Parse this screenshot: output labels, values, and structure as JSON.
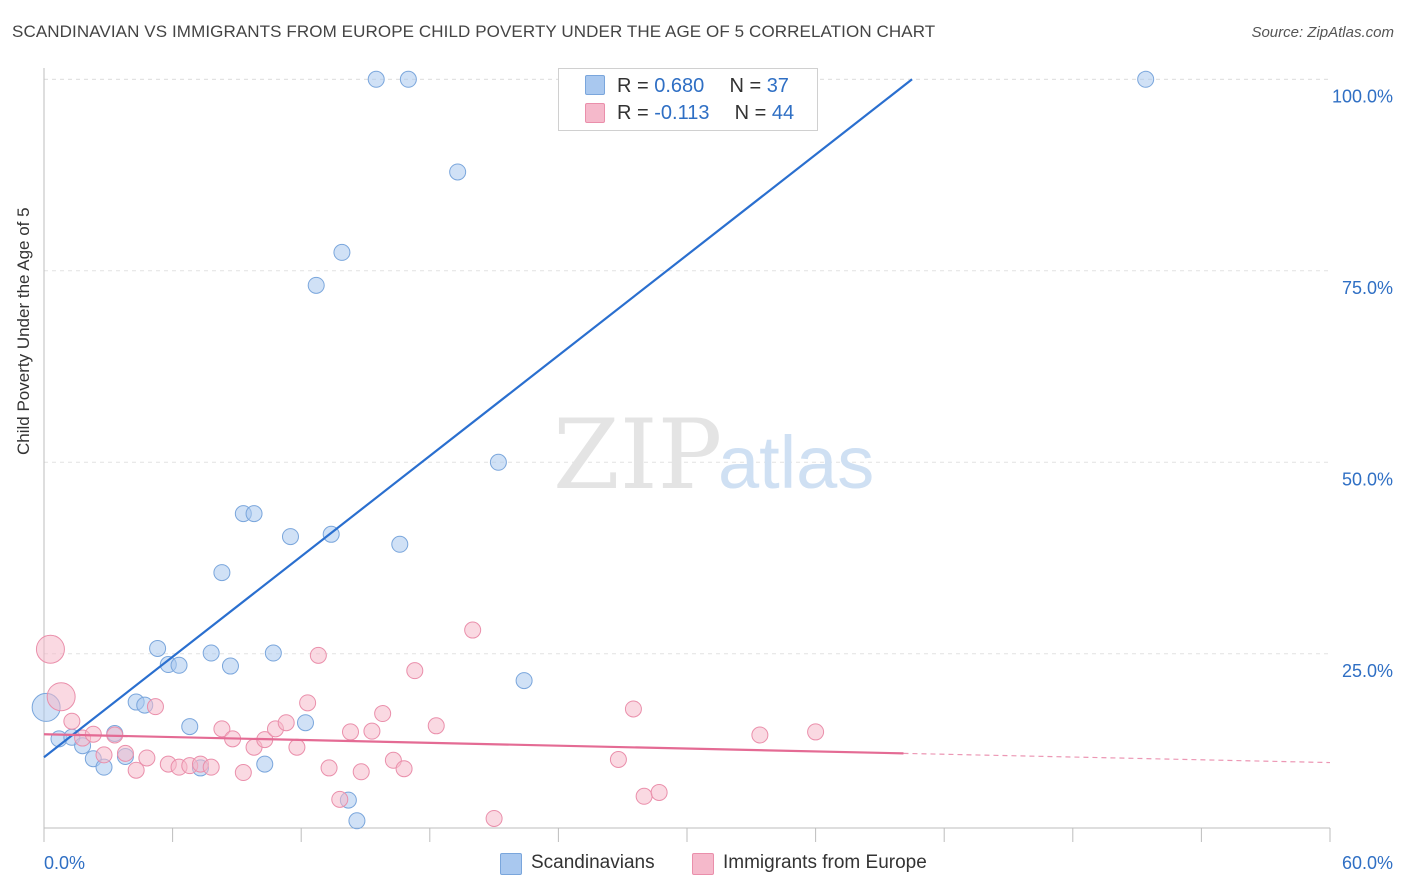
{
  "header": {
    "title": "SCANDINAVIAN VS IMMIGRANTS FROM EUROPE CHILD POVERTY UNDER THE AGE OF 5 CORRELATION CHART",
    "source": "Source: ZipAtlas.com"
  },
  "watermark": {
    "zip": "ZIP",
    "atlas": "atlas"
  },
  "legend_top": {
    "r_label": "R =",
    "n_label": "N =",
    "series": [
      {
        "r": "0.680",
        "n": "37"
      },
      {
        "r": "-0.113",
        "n": "44"
      }
    ]
  },
  "colors": {
    "blue_fill": "#a9c8ef",
    "blue_stroke": "#7aa6dc",
    "blue_line": "#2a6fcf",
    "pink_fill": "#f5b9cb",
    "pink_stroke": "#ea8fab",
    "pink_line": "#e46b94",
    "tick_label": "#2f6fc4",
    "grid": "#e2e2e2"
  },
  "chart_data": {
    "type": "scatter",
    "title": "SCANDINAVIAN VS IMMIGRANTS FROM EUROPE CHILD POVERTY UNDER THE AGE OF 5 CORRELATION CHART",
    "xlabel": "",
    "ylabel": "Child Poverty Under the Age of 5",
    "xlim": [
      0,
      60
    ],
    "ylim": [
      0,
      102
    ],
    "x_tick_labels": [
      "0.0%",
      "60.0%"
    ],
    "y_ticks": [
      25,
      50,
      75,
      100
    ],
    "y_tick_labels": [
      "25.0%",
      "50.0%",
      "75.0%",
      "100.0%"
    ],
    "grid": true,
    "legend_position": "bottom",
    "series": [
      {
        "name": "Scandinavians",
        "color": "#a9c8ef",
        "trend": {
          "x": [
            0,
            40.5
          ],
          "y": [
            11.5,
            100
          ]
        },
        "points": [
          {
            "x": 0.1,
            "y": 18.0,
            "big": true
          },
          {
            "x": 0.7,
            "y": 13.9
          },
          {
            "x": 1.3,
            "y": 14.1
          },
          {
            "x": 1.8,
            "y": 13.0
          },
          {
            "x": 2.3,
            "y": 11.3
          },
          {
            "x": 2.8,
            "y": 10.2
          },
          {
            "x": 3.3,
            "y": 14.6
          },
          {
            "x": 3.8,
            "y": 11.6
          },
          {
            "x": 4.3,
            "y": 18.7
          },
          {
            "x": 4.7,
            "y": 18.3
          },
          {
            "x": 5.3,
            "y": 25.7
          },
          {
            "x": 5.8,
            "y": 23.6
          },
          {
            "x": 6.3,
            "y": 23.5
          },
          {
            "x": 6.8,
            "y": 15.5
          },
          {
            "x": 7.3,
            "y": 10.1
          },
          {
            "x": 7.8,
            "y": 25.1
          },
          {
            "x": 8.3,
            "y": 35.6
          },
          {
            "x": 8.7,
            "y": 23.4
          },
          {
            "x": 9.3,
            "y": 43.3
          },
          {
            "x": 9.8,
            "y": 43.3
          },
          {
            "x": 10.3,
            "y": 10.6
          },
          {
            "x": 10.7,
            "y": 25.1
          },
          {
            "x": 11.5,
            "y": 40.3
          },
          {
            "x": 12.2,
            "y": 16.0
          },
          {
            "x": 12.7,
            "y": 73.1
          },
          {
            "x": 13.4,
            "y": 40.6
          },
          {
            "x": 13.9,
            "y": 77.4
          },
          {
            "x": 14.2,
            "y": 5.9
          },
          {
            "x": 14.6,
            "y": 3.2
          },
          {
            "x": 15.5,
            "y": 100.0
          },
          {
            "x": 16.6,
            "y": 39.3
          },
          {
            "x": 17.0,
            "y": 100.0
          },
          {
            "x": 19.3,
            "y": 87.9
          },
          {
            "x": 21.2,
            "y": 50.0
          },
          {
            "x": 22.4,
            "y": 21.5
          },
          {
            "x": 26.2,
            "y": 100.0
          },
          {
            "x": 51.4,
            "y": 100.0
          }
        ]
      },
      {
        "name": "Immigrants from Europe",
        "color": "#f5b9cb",
        "trend": {
          "x": [
            0,
            40.1
          ],
          "y": [
            14.5,
            12.0
          ]
        },
        "trend_ext": {
          "x": [
            40.1,
            60
          ],
          "y": [
            12.0,
            10.8
          ]
        },
        "points": [
          {
            "x": 0.3,
            "y": 25.6,
            "big": true
          },
          {
            "x": 0.8,
            "y": 19.4,
            "big": true
          },
          {
            "x": 1.3,
            "y": 16.2
          },
          {
            "x": 1.8,
            "y": 14.0
          },
          {
            "x": 2.3,
            "y": 14.5
          },
          {
            "x": 2.8,
            "y": 11.8
          },
          {
            "x": 3.3,
            "y": 14.4
          },
          {
            "x": 3.8,
            "y": 12.0
          },
          {
            "x": 4.3,
            "y": 9.8
          },
          {
            "x": 4.8,
            "y": 11.4
          },
          {
            "x": 5.2,
            "y": 18.1
          },
          {
            "x": 5.8,
            "y": 10.6
          },
          {
            "x": 6.3,
            "y": 10.2
          },
          {
            "x": 6.8,
            "y": 10.4
          },
          {
            "x": 7.3,
            "y": 10.6
          },
          {
            "x": 7.8,
            "y": 10.2
          },
          {
            "x": 8.3,
            "y": 15.2
          },
          {
            "x": 8.8,
            "y": 13.9
          },
          {
            "x": 9.3,
            "y": 9.5
          },
          {
            "x": 9.8,
            "y": 12.8
          },
          {
            "x": 10.3,
            "y": 13.8
          },
          {
            "x": 10.8,
            "y": 15.2
          },
          {
            "x": 11.3,
            "y": 16.0
          },
          {
            "x": 11.8,
            "y": 12.8
          },
          {
            "x": 12.3,
            "y": 18.6
          },
          {
            "x": 12.8,
            "y": 24.8
          },
          {
            "x": 13.3,
            "y": 10.1
          },
          {
            "x": 13.8,
            "y": 6.0
          },
          {
            "x": 14.3,
            "y": 14.8
          },
          {
            "x": 14.8,
            "y": 9.6
          },
          {
            "x": 15.3,
            "y": 14.9
          },
          {
            "x": 15.8,
            "y": 17.2
          },
          {
            "x": 16.3,
            "y": 11.1
          },
          {
            "x": 16.8,
            "y": 10.0
          },
          {
            "x": 17.3,
            "y": 22.8
          },
          {
            "x": 18.3,
            "y": 15.6
          },
          {
            "x": 20.0,
            "y": 28.1
          },
          {
            "x": 21.0,
            "y": 3.5
          },
          {
            "x": 26.8,
            "y": 11.2
          },
          {
            "x": 27.5,
            "y": 17.8
          },
          {
            "x": 28.0,
            "y": 6.4
          },
          {
            "x": 28.7,
            "y": 6.9
          },
          {
            "x": 33.4,
            "y": 14.4
          },
          {
            "x": 36.0,
            "y": 14.8
          }
        ]
      }
    ]
  }
}
